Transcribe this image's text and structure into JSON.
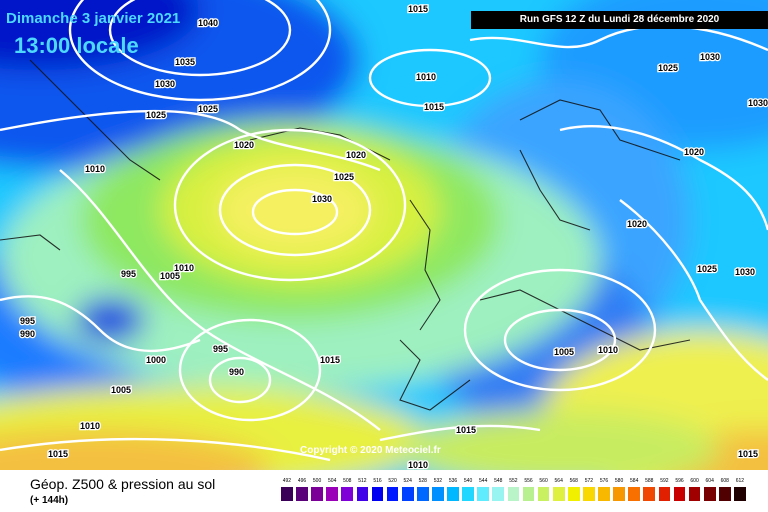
{
  "header": {
    "date": "Dimanche 3 janvier 2021",
    "time": "13:00 locale",
    "run": "Run GFS 12 Z du Lundi 28 décembre 2020"
  },
  "copyright": "Copyright © 2020 Meteociel.fr",
  "footer": {
    "title": "Géop. Z500 & pression au sol",
    "subtitle": "(+ 144h)"
  },
  "isobar_labels": [
    "1040",
    "1035",
    "1030",
    "1025",
    "1015",
    "1010",
    "1020",
    "1025",
    "1030",
    "1020",
    "1010",
    "995",
    "990",
    "995",
    "1005",
    "1010",
    "1000",
    "995",
    "990",
    "1005",
    "1010",
    "1015",
    "1015",
    "1010",
    "1015",
    "1020",
    "1030",
    "1025",
    "1030",
    "1020",
    "1025",
    "1030",
    "1005",
    "1010",
    "1015",
    "1015",
    "1010"
  ],
  "scale": {
    "ticks": [
      "492",
      "496",
      "500",
      "504",
      "508",
      "512",
      "516",
      "520",
      "524",
      "528",
      "532",
      "536",
      "540",
      "544",
      "548",
      "552",
      "556",
      "560",
      "564",
      "568",
      "572",
      "576",
      "580",
      "584",
      "588",
      "592",
      "596",
      "600",
      "604",
      "608",
      "612"
    ],
    "colors": [
      "#3a0058",
      "#5a0078",
      "#7a0098",
      "#9a00b8",
      "#8000d8",
      "#4000e8",
      "#0000f0",
      "#0018ff",
      "#0040ff",
      "#0068ff",
      "#0090ff",
      "#00b8ff",
      "#20d8ff",
      "#60ecff",
      "#98f4f0",
      "#b8f4c8",
      "#b8f090",
      "#c8f060",
      "#e0f040",
      "#f0f000",
      "#f8d800",
      "#f8b800",
      "#f89800",
      "#f87000",
      "#f04800",
      "#e02000",
      "#c80000",
      "#a00000",
      "#780000",
      "#500000",
      "#200000"
    ]
  }
}
